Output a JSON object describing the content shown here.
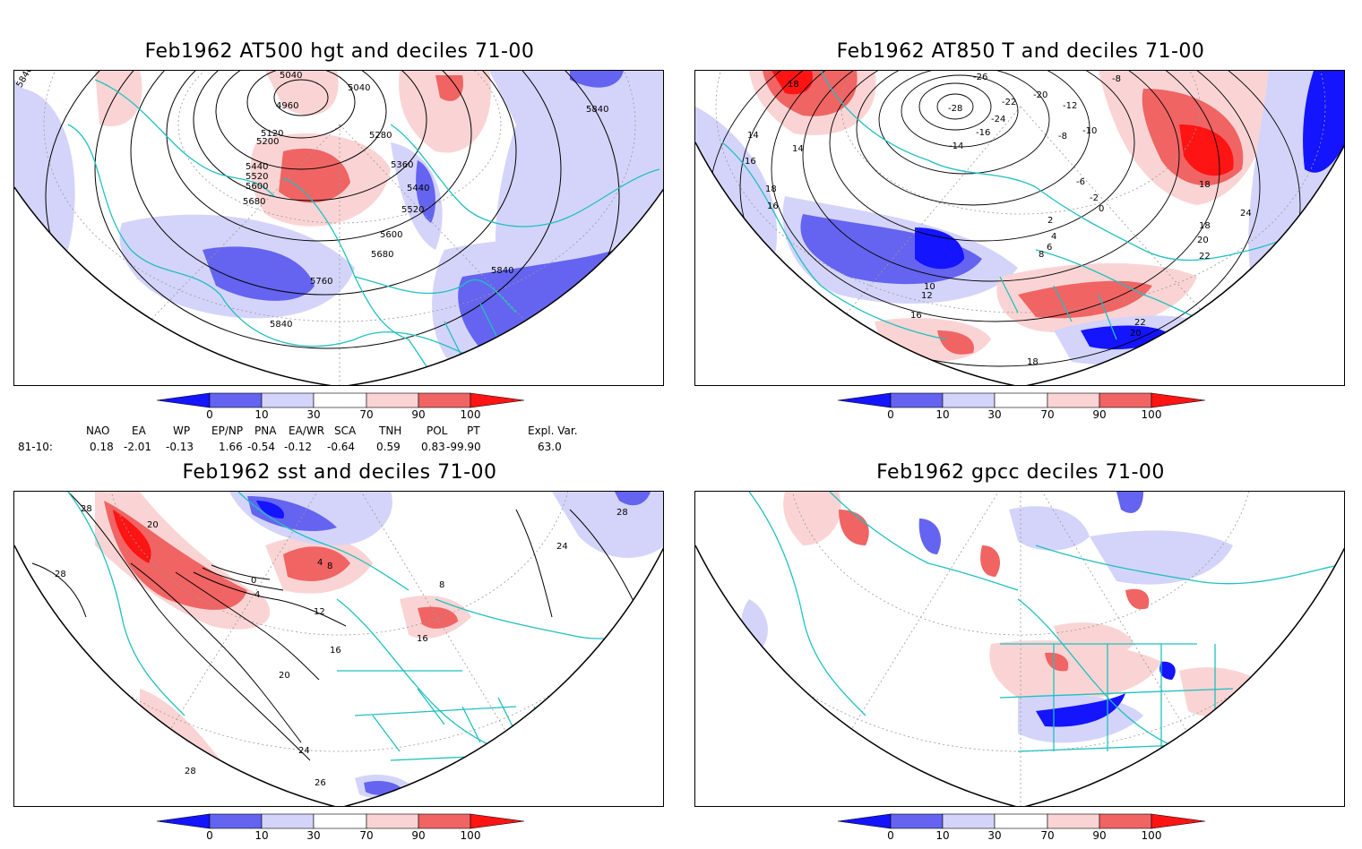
{
  "panels": [
    {
      "title": "Feb1962 AT500 hgt and deciles 71-00"
    },
    {
      "title": "Feb1962 AT850 T and deciles 71-00"
    },
    {
      "title": "Feb1962 sst and deciles 71-00"
    },
    {
      "title": "Feb1962 gpcc deciles 71-00"
    }
  ],
  "colorbar": {
    "labels": [
      "0",
      "10",
      "30",
      "70",
      "90",
      "100"
    ],
    "colors": {
      "deep_blue": "#1414ff",
      "mid_blue": "#6464f0",
      "light_blue": "#d4d4fa",
      "white": "#ffffff",
      "light_red": "#fad4d4",
      "mid_red": "#f06464",
      "deep_red": "#ff1414"
    }
  },
  "map_colors": {
    "coast": "#20c0c0",
    "contour": "#000000",
    "grid": "#999999"
  },
  "indices": {
    "headers": [
      "NAO",
      "EA",
      "WP",
      "EP/NP",
      "PNA",
      "EA/WR",
      "SCA",
      "TNH",
      "POL",
      "PT",
      "Expl. Var."
    ],
    "row_label": "81-10:",
    "values": [
      "0.18",
      "-2.01",
      "-0.13",
      "1.66",
      "-0.54",
      "-0.12",
      "-0.64",
      "0.59",
      "0.83",
      "-99.90",
      "63.0"
    ]
  },
  "contour_labels": {
    "hgt": [
      "5040",
      "4960",
      "5040",
      "5120",
      "5200",
      "5280",
      "5360",
      "5440",
      "5520",
      "5600",
      "5680",
      "5440",
      "5520",
      "5600",
      "5680",
      "5760",
      "5840",
      "5840",
      "5840",
      "5840"
    ],
    "t850": [
      "-26",
      "-8",
      "-20",
      "-22",
      "-28",
      "-24",
      "-16",
      "-14",
      "-12",
      "-10",
      "-8",
      "-6",
      "-2",
      "0",
      "2",
      "4",
      "6",
      "8",
      "10",
      "12",
      "14",
      "16",
      "16",
      "18",
      "18",
      "18",
      "18",
      "20",
      "22",
      "24",
      "16",
      "20",
      "22",
      "14",
      "18"
    ],
    "sst": [
      "28",
      "20",
      "28",
      "0",
      "4",
      "4",
      "8",
      "12",
      "16",
      "20",
      "24",
      "28",
      "26",
      "24",
      "28",
      "16",
      "8"
    ]
  }
}
